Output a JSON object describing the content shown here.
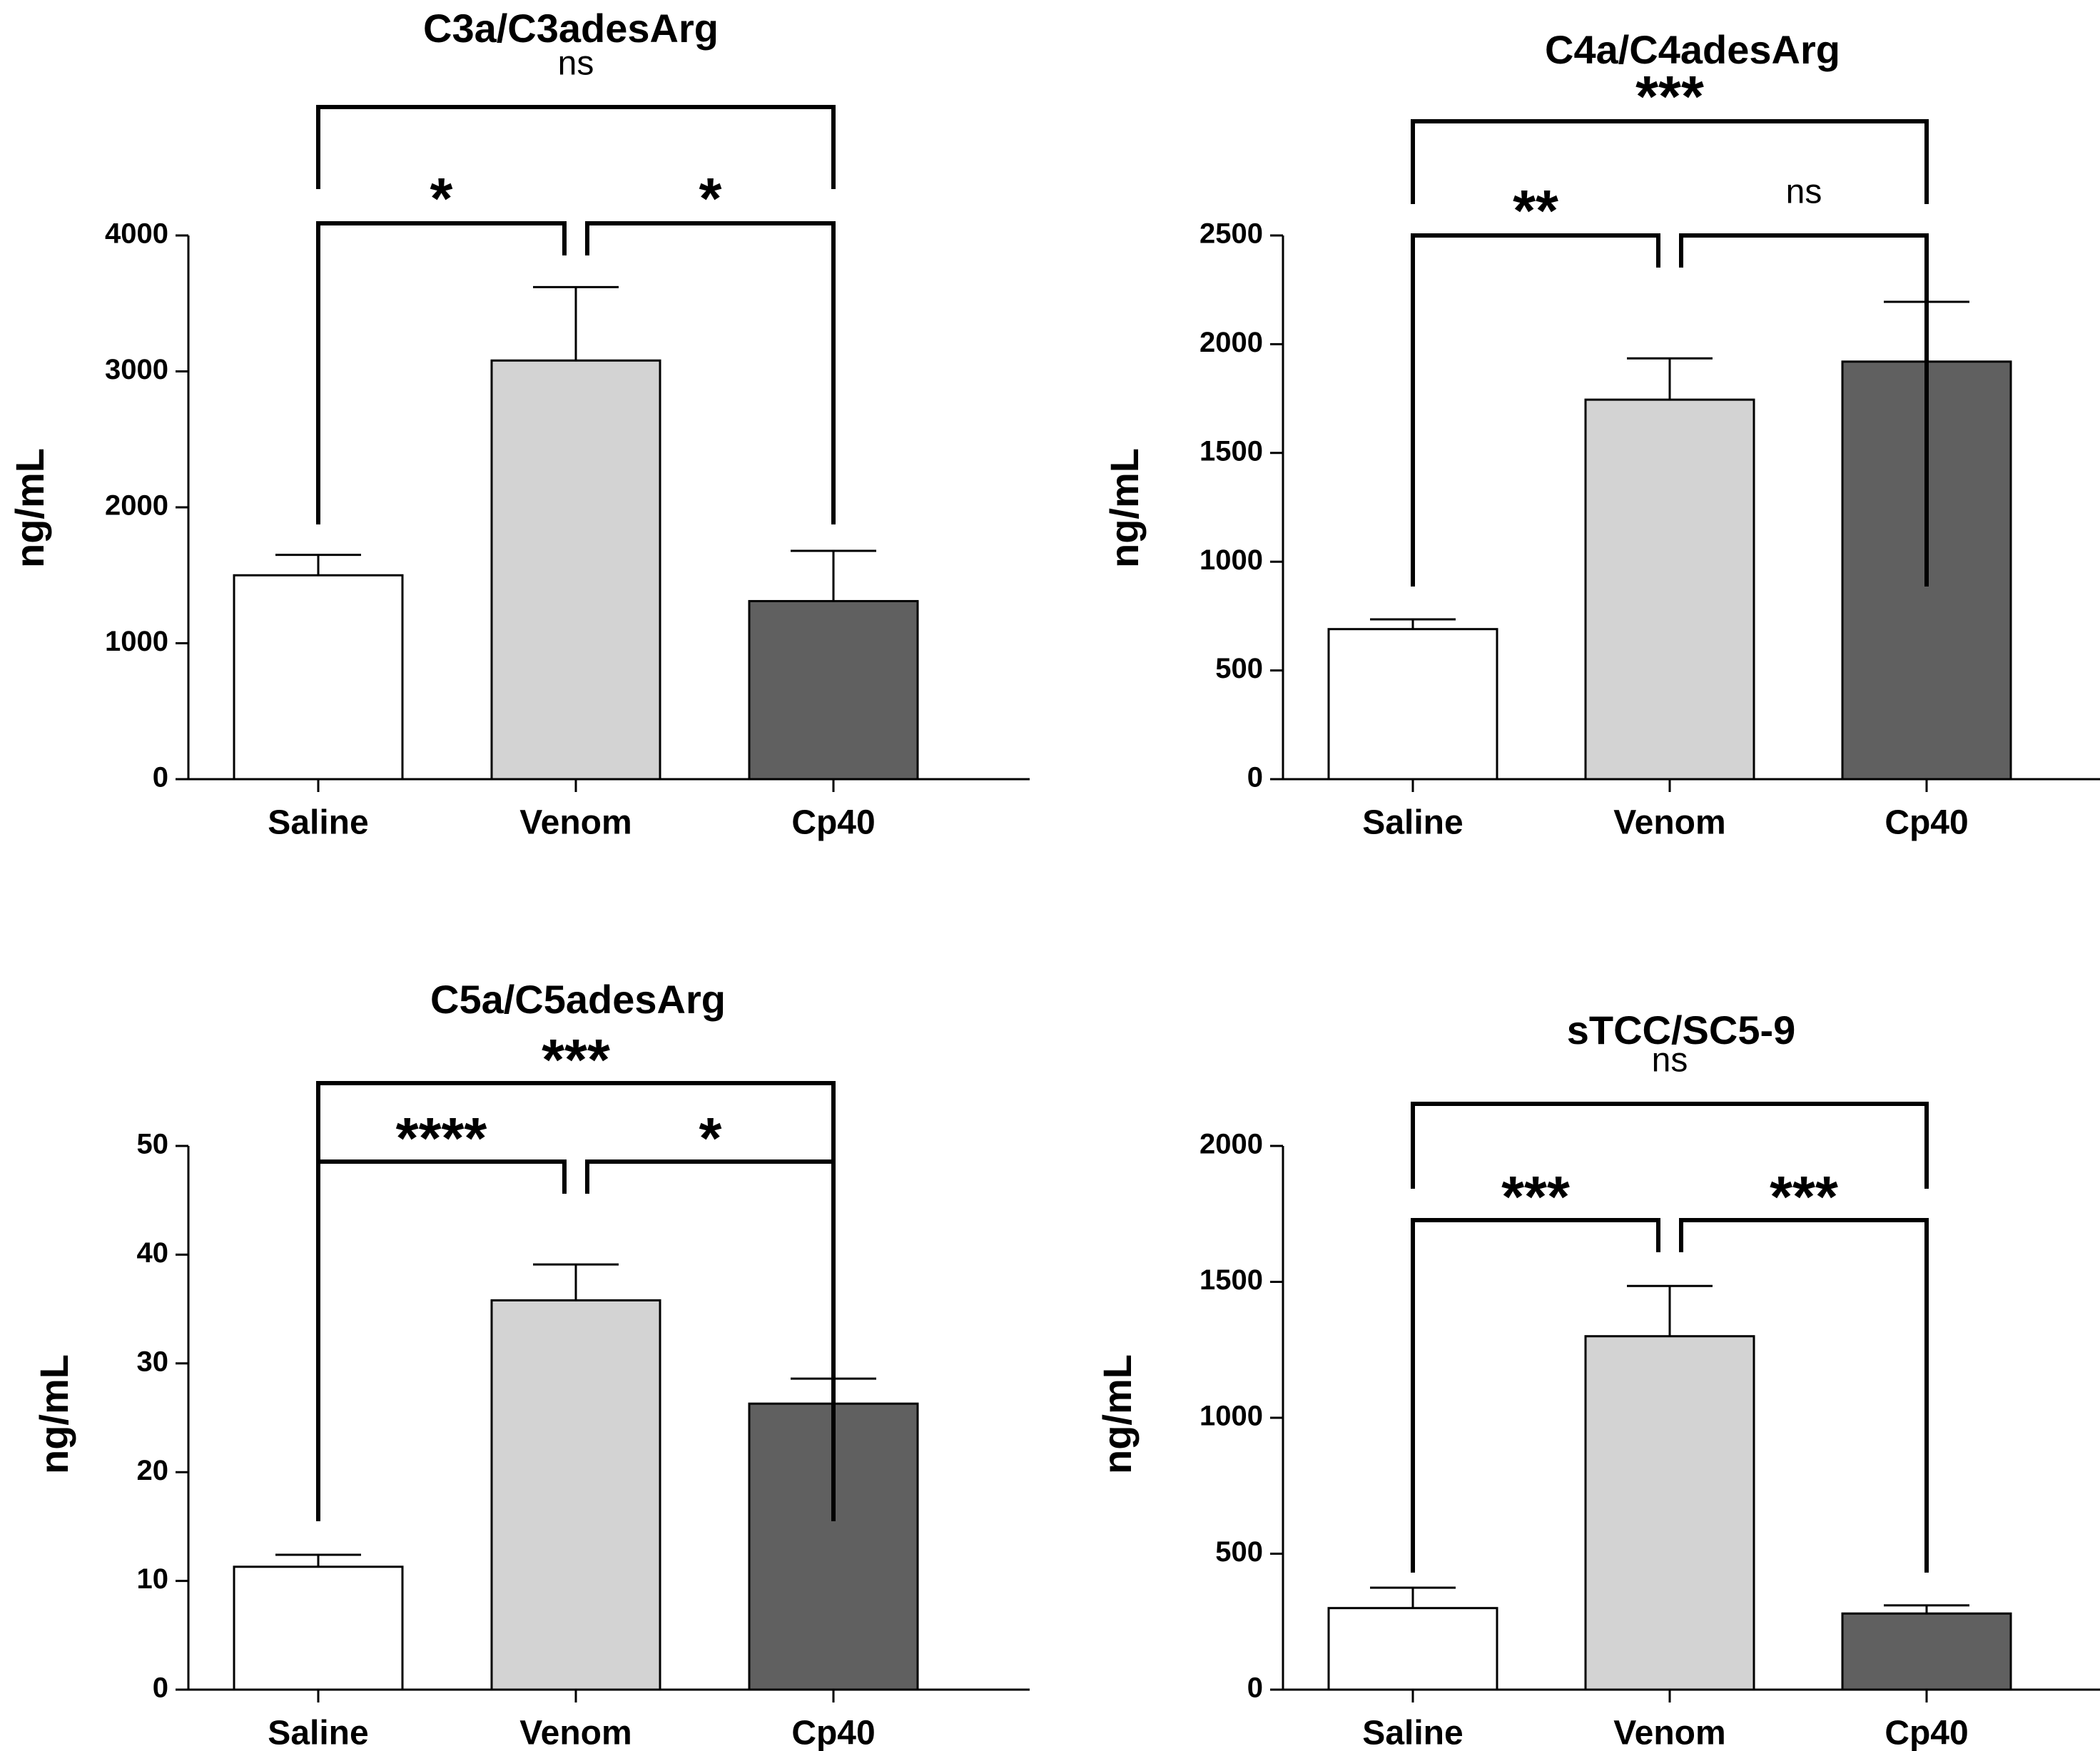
{
  "chart_data": [
    {
      "type": "bar",
      "title": "C3a/C3adesArg",
      "xlabel": "",
      "ylabel": "ng/mL",
      "categories": [
        "Saline",
        "Venom",
        "Cp40"
      ],
      "values": [
        1500,
        3080,
        1310
      ],
      "errors": [
        150,
        540,
        370
      ],
      "bar_colors": [
        "#ffffff",
        "#d3d3d3",
        "#606060"
      ],
      "ylim": [
        0,
        4000
      ],
      "yticks": [
        0,
        1000,
        2000,
        3000,
        4000
      ],
      "comparisons": [
        {
          "from": 0,
          "to": 1,
          "label": "*"
        },
        {
          "from": 1,
          "to": 2,
          "label": "*"
        },
        {
          "from": 0,
          "to": 2,
          "label": "ns"
        }
      ]
    },
    {
      "type": "bar",
      "title": "C4a/C4adesArg",
      "xlabel": "",
      "ylabel": "ng/mL",
      "categories": [
        "Saline",
        "Venom",
        "Cp40"
      ],
      "values": [
        690,
        1745,
        1920
      ],
      "errors": [
        45,
        190,
        275
      ],
      "bar_colors": [
        "#ffffff",
        "#d3d3d3",
        "#606060"
      ],
      "ylim": [
        0,
        2500
      ],
      "yticks": [
        0,
        500,
        1000,
        1500,
        2000,
        2500
      ],
      "comparisons": [
        {
          "from": 0,
          "to": 1,
          "label": "**"
        },
        {
          "from": 1,
          "to": 2,
          "label": "ns"
        },
        {
          "from": 0,
          "to": 2,
          "label": "***"
        }
      ]
    },
    {
      "type": "bar",
      "title": "C5a/C5adesArg",
      "xlabel": "",
      "ylabel": "ng/mL",
      "categories": [
        "Saline",
        "Venom",
        "Cp40"
      ],
      "values": [
        11.3,
        35.8,
        26.3
      ],
      "errors": [
        1.1,
        3.3,
        2.3
      ],
      "bar_colors": [
        "#ffffff",
        "#d3d3d3",
        "#606060"
      ],
      "ylim": [
        0,
        50
      ],
      "yticks": [
        0,
        10,
        20,
        30,
        40,
        50
      ],
      "comparisons": [
        {
          "from": 0,
          "to": 1,
          "label": "****"
        },
        {
          "from": 1,
          "to": 2,
          "label": "*"
        },
        {
          "from": 0,
          "to": 2,
          "label": "***"
        }
      ]
    },
    {
      "type": "bar",
      "title": "sTCC/SC5-9",
      "xlabel": "",
      "ylabel": "ng/mL",
      "categories": [
        "Saline",
        "Venom",
        "Cp40"
      ],
      "values": [
        300,
        1300,
        280
      ],
      "errors": [
        75,
        185,
        30
      ],
      "bar_colors": [
        "#ffffff",
        "#d3d3d3",
        "#606060"
      ],
      "ylim": [
        0,
        2000
      ],
      "yticks": [
        0,
        500,
        1000,
        1500,
        2000
      ],
      "comparisons": [
        {
          "from": 0,
          "to": 1,
          "label": "***"
        },
        {
          "from": 1,
          "to": 2,
          "label": "***"
        },
        {
          "from": 0,
          "to": 2,
          "label": "ns"
        }
      ]
    }
  ]
}
